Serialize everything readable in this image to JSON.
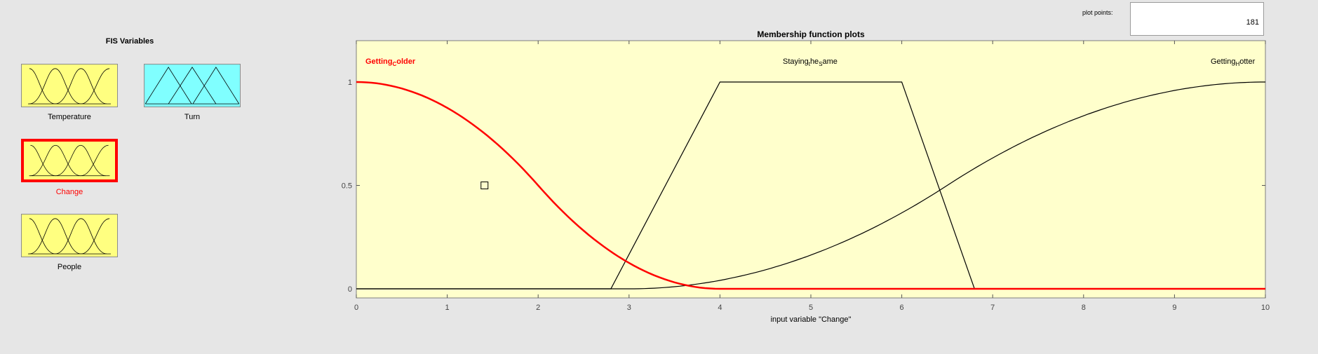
{
  "fis_panel": {
    "title": "FIS Variables",
    "variables": [
      {
        "label": "Temperature",
        "kind": "input",
        "selected": false
      },
      {
        "label": "Turn",
        "kind": "output",
        "selected": false
      },
      {
        "label": "Change",
        "kind": "input",
        "selected": true
      },
      {
        "label": "People",
        "kind": "input",
        "selected": false
      }
    ]
  },
  "plot_points": {
    "label": "plot points:",
    "value": "181"
  },
  "plot": {
    "title": "Membership function plots",
    "xlabel": "input variable \"Change\"",
    "colors": {
      "background": "#ffffcc",
      "selected": "#ff0000",
      "normal": "#000000",
      "input_icon": "#ffff80",
      "output_icon": "#80ffff"
    },
    "mf_labels": [
      {
        "main": "Getting",
        "sub": "C",
        "rest": "older",
        "selected": true
      },
      {
        "main": "Staying",
        "sub": "t",
        "mid": "he",
        "sub2": "S",
        "rest": "ame",
        "selected": false
      },
      {
        "main": "Getting",
        "sub": "H",
        "rest": "otter",
        "selected": false
      }
    ]
  },
  "chart_data": {
    "type": "line",
    "title": "Membership function plots",
    "xlabel": "input variable \"Change\"",
    "ylabel": "",
    "xlim": [
      0,
      10
    ],
    "ylim": [
      0,
      1
    ],
    "x_ticks": [
      "0",
      "1",
      "2",
      "3",
      "4",
      "5",
      "6",
      "7",
      "8",
      "9",
      "10"
    ],
    "y_ticks": [
      "0",
      "0.5",
      "1"
    ],
    "grid": false,
    "series": [
      {
        "name": "GettingColder",
        "shape": "zmf",
        "params": [
          0,
          4
        ],
        "selected": true
      },
      {
        "name": "StayingTheSame",
        "shape": "trapmf",
        "params": [
          2.8,
          4,
          6,
          6.8
        ],
        "selected": false
      },
      {
        "name": "GettingHotter",
        "shape": "smf",
        "params": [
          3,
          10
        ],
        "selected": false
      }
    ],
    "marker": {
      "x": 1.41,
      "y": 0.5
    }
  }
}
